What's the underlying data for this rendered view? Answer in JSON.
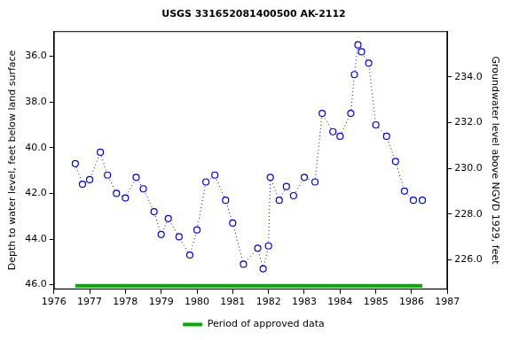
{
  "chart_data": {
    "type": "scatter",
    "title": "USGS 331652081400500 AK-2112",
    "y_label": "Depth to water level, feet below land surface",
    "y2_label": "Groundwater level above NGVD 1929, feet",
    "x": [
      1976.6,
      1976.8,
      1977.0,
      1977.3,
      1977.5,
      1977.75,
      1978.0,
      1978.3,
      1978.5,
      1978.8,
      1979.0,
      1979.2,
      1979.5,
      1979.8,
      1980.0,
      1980.25,
      1980.5,
      1980.8,
      1981.0,
      1981.3,
      1981.7,
      1981.85,
      1982.0,
      1982.05,
      1982.3,
      1982.5,
      1982.7,
      1983.0,
      1983.3,
      1983.5,
      1983.8,
      1984.0,
      1984.3,
      1984.4,
      1984.5,
      1984.6,
      1984.8,
      1985.0,
      1985.3,
      1985.55,
      1985.8,
      1986.05,
      1986.3
    ],
    "series": [
      {
        "color": "#0000cc",
        "marker": "circle",
        "line_style": "dotted",
        "values": [
          40.7,
          41.6,
          41.4,
          40.2,
          41.2,
          42.0,
          42.2,
          41.3,
          41.8,
          42.8,
          43.8,
          43.1,
          43.9,
          44.7,
          43.6,
          41.5,
          41.2,
          42.3,
          43.3,
          45.1,
          44.4,
          45.3,
          44.3,
          41.3,
          42.3,
          41.7,
          42.1,
          41.3,
          41.5,
          38.5,
          39.3,
          39.5,
          38.5,
          36.8,
          35.5,
          35.8,
          36.3,
          39.0,
          39.5,
          40.6,
          41.9,
          42.3,
          42.3
        ]
      }
    ],
    "periods": [
      {
        "name": "Period of approved data",
        "color": "#00aa00",
        "x": [
          1976.6,
          1986.3
        ]
      }
    ],
    "xlim": [
      1976,
      1987
    ],
    "xticks": [
      1976,
      1977,
      1978,
      1979,
      1980,
      1981,
      1982,
      1983,
      1984,
      1985,
      1986,
      1987
    ],
    "ylim": [
      46.2,
      34.9
    ],
    "yticks": [
      {
        "value": 36,
        "label": "36.0"
      },
      {
        "value": 38,
        "label": "38.0"
      },
      {
        "value": 40,
        "label": "40.0"
      },
      {
        "value": 42,
        "label": "42.0"
      },
      {
        "value": 44,
        "label": "44.0"
      },
      {
        "value": 46,
        "label": "46.0"
      }
    ],
    "y2lim": [
      224.7,
      236.0
    ],
    "y2ticks": [
      {
        "value": 226,
        "label": "226.0"
      },
      {
        "value": 228,
        "label": "228.0"
      },
      {
        "value": 230,
        "label": "230.0"
      },
      {
        "value": 232,
        "label": "232.0"
      },
      {
        "value": 234,
        "label": "234.0"
      }
    ],
    "grid": false,
    "legend": "bottom"
  }
}
